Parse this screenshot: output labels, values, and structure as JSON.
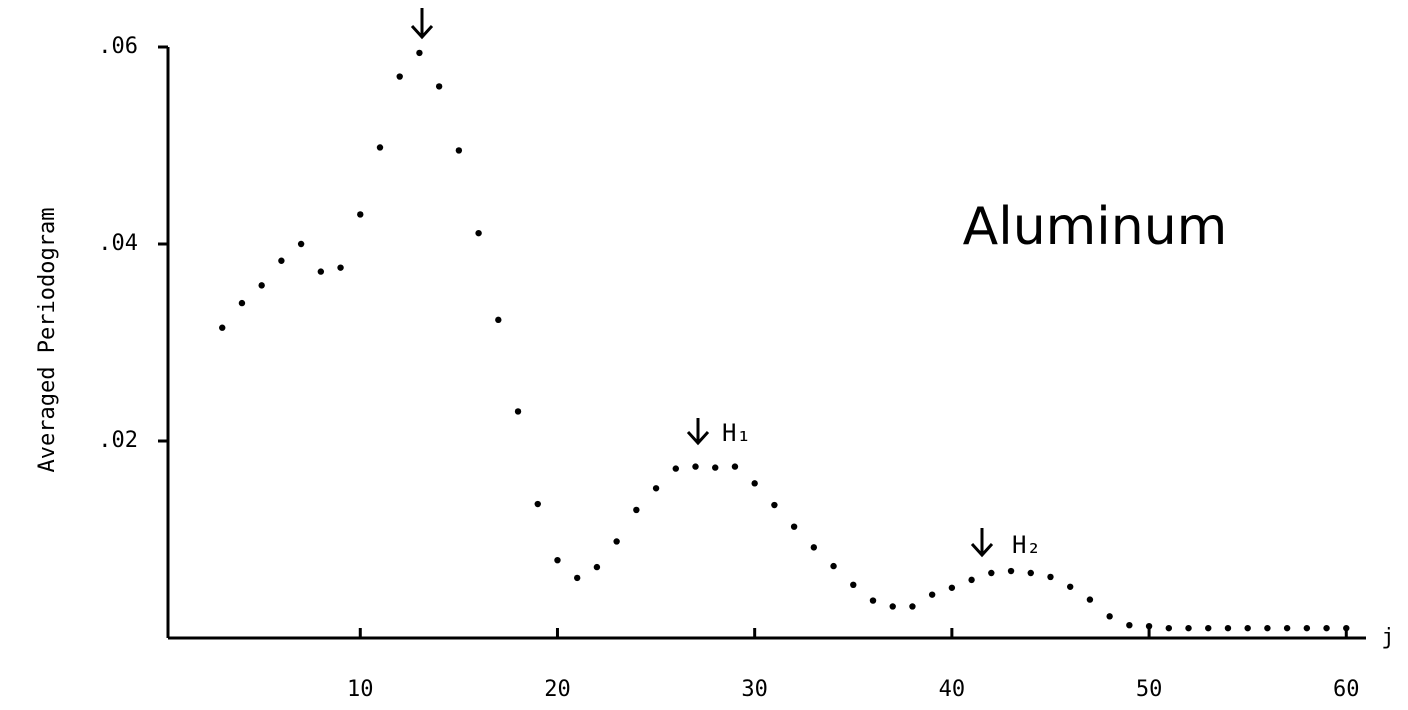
{
  "chart_data": {
    "type": "scatter",
    "title": "Aluminum",
    "y_label": "Averaged Periodogram",
    "x_label": "j",
    "annotations": [
      "H₁",
      "H₂"
    ],
    "x": [
      3,
      4,
      5,
      6,
      7,
      8,
      9,
      10,
      11,
      12,
      13,
      14,
      15,
      16,
      17,
      18,
      19,
      20,
      21,
      22,
      23,
      24,
      25,
      26,
      27,
      28,
      29,
      30,
      31,
      32,
      33,
      34,
      35,
      36,
      37,
      38,
      39,
      40,
      41,
      42,
      43,
      44,
      45,
      46,
      47,
      48,
      49,
      50,
      51,
      52,
      53,
      54,
      55,
      56,
      57,
      58,
      59,
      60
    ],
    "values": [
      0.0315,
      0.034,
      0.0358,
      0.0383,
      0.04,
      0.0372,
      0.0376,
      0.043,
      0.0498,
      0.057,
      0.0594,
      0.056,
      0.0495,
      0.0411,
      0.0323,
      0.023,
      0.0136,
      0.0079,
      0.0061,
      0.0072,
      0.0098,
      0.013,
      0.0152,
      0.0172,
      0.0174,
      0.0173,
      0.0174,
      0.0157,
      0.0135,
      0.0113,
      0.0092,
      0.0073,
      0.0054,
      0.0038,
      0.0032,
      0.0032,
      0.0044,
      0.0051,
      0.0059,
      0.0066,
      0.0068,
      0.0066,
      0.0062,
      0.0052,
      0.0039,
      0.0022,
      0.0013,
      0.0012,
      0.001,
      0.001,
      0.001,
      0.001,
      0.001,
      0.001,
      0.001,
      0.001,
      0.001,
      0.001
    ],
    "color": "#000000",
    "xlim": [
      0.25,
      61
    ],
    "ylim": [
      0,
      0.06
    ],
    "xticks": [
      10,
      20,
      30,
      40,
      50,
      60
    ],
    "yticks": [
      {
        "value": 0.02,
        "label": ".02"
      },
      {
        "value": 0.04,
        "label": ".04"
      },
      {
        "value": 0.06,
        "label": ".06"
      }
    ]
  }
}
